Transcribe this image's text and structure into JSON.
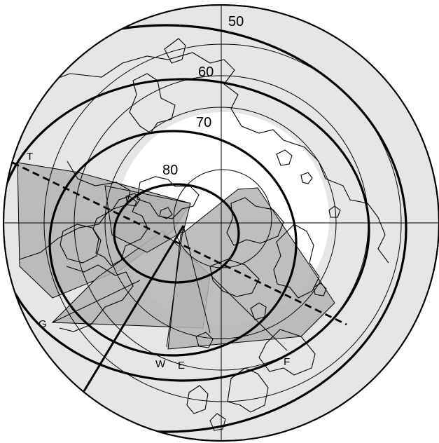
{
  "map": {
    "projection": "north polar stereographic",
    "colors": {
      "outside_disk": "#e6e6e6",
      "inside_disk": "#ffffff",
      "coverage_fill": "#b3b3b3",
      "line": "#000000"
    }
  },
  "labels": {
    "lat_50": "50",
    "lat_60": "60",
    "lat_70": "70",
    "lat_80": "80",
    "marker_t": "T",
    "marker_g": "G",
    "marker_w": "W",
    "marker_e": "E",
    "marker_f": "F"
  }
}
